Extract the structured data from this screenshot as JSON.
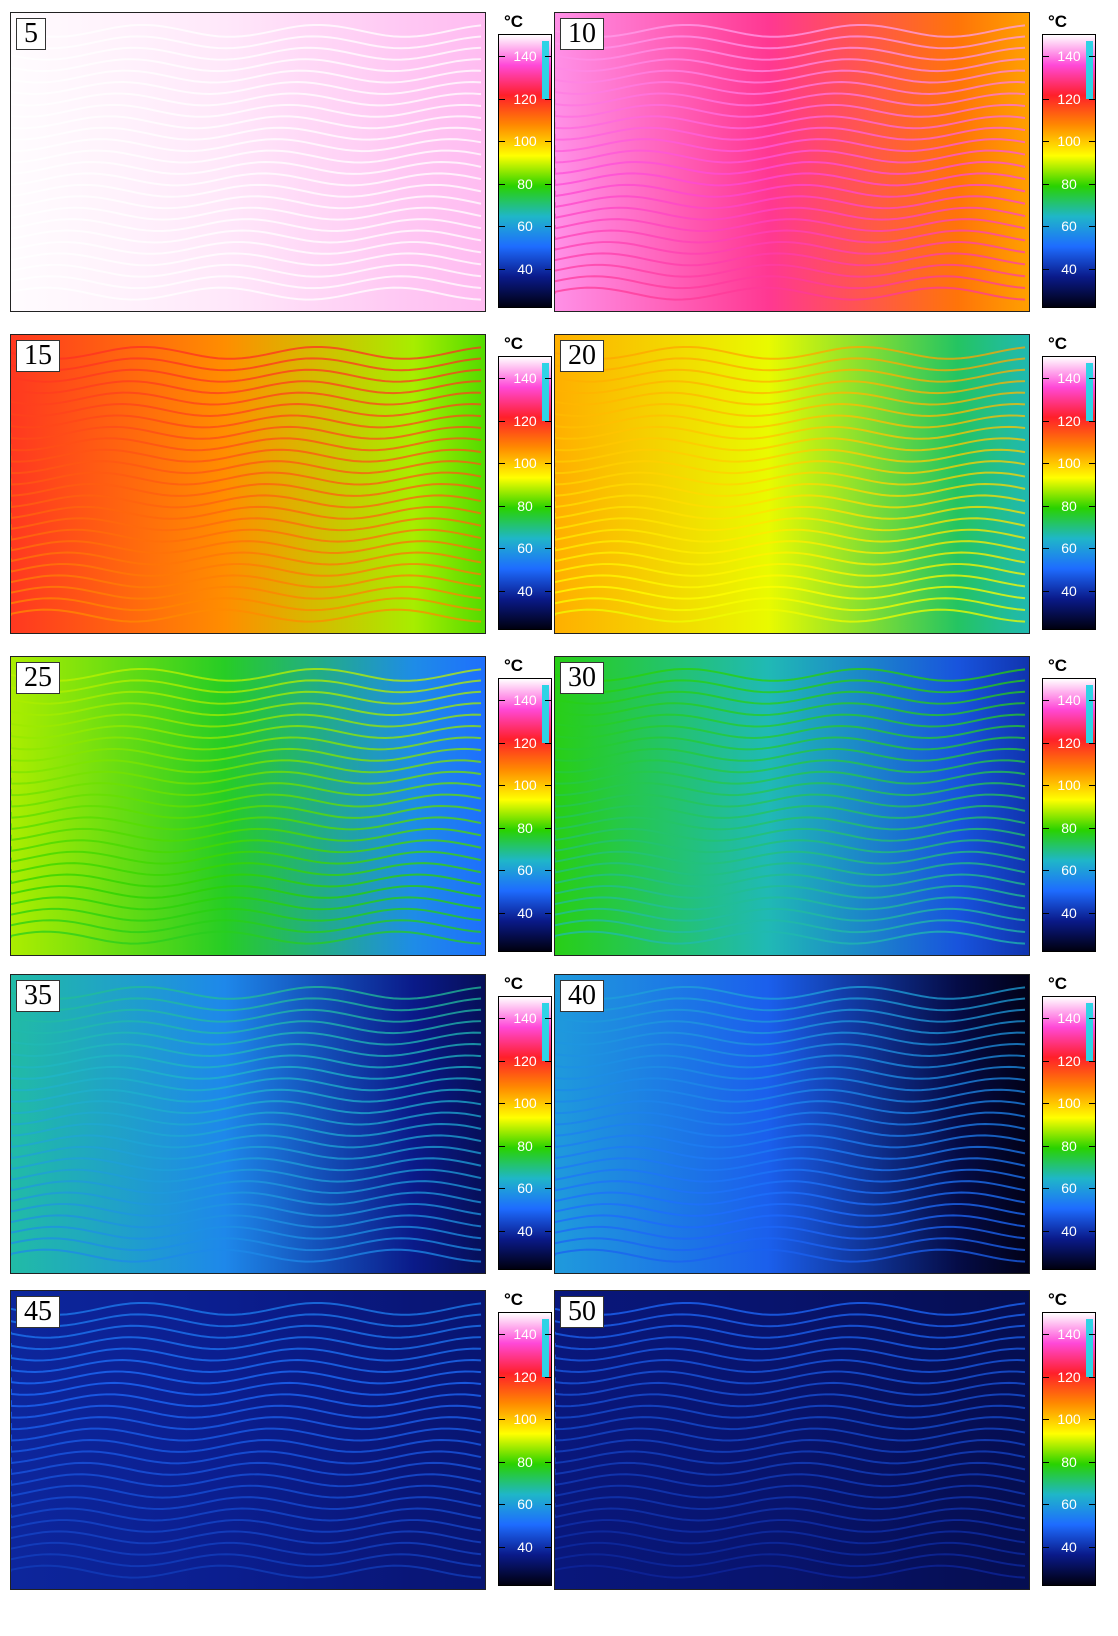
{
  "frames": [
    {
      "label": "5",
      "temp_level": 0.98
    },
    {
      "label": "10",
      "temp_level": 0.8
    },
    {
      "label": "15",
      "temp_level": 0.62
    },
    {
      "label": "20",
      "temp_level": 0.5
    },
    {
      "label": "25",
      "temp_level": 0.38
    },
    {
      "label": "30",
      "temp_level": 0.3
    },
    {
      "label": "35",
      "temp_level": 0.22
    },
    {
      "label": "40",
      "temp_level": 0.16
    },
    {
      "label": "45",
      "temp_level": 0.11
    },
    {
      "label": "50",
      "temp_level": 0.08
    }
  ],
  "colorbar": {
    "unit": "°C",
    "ticks": [
      "140",
      "120",
      "100",
      "80",
      "60",
      "40"
    ],
    "colors": [
      "#ffffff",
      "#ff49d8",
      "#ff1f2a",
      "#ff8a00",
      "#ffff00",
      "#29d200",
      "#1fb6c8",
      "#1e6cff",
      "#0a1a8a",
      "#000010"
    ],
    "marker_color": "#2fd3e6"
  }
}
